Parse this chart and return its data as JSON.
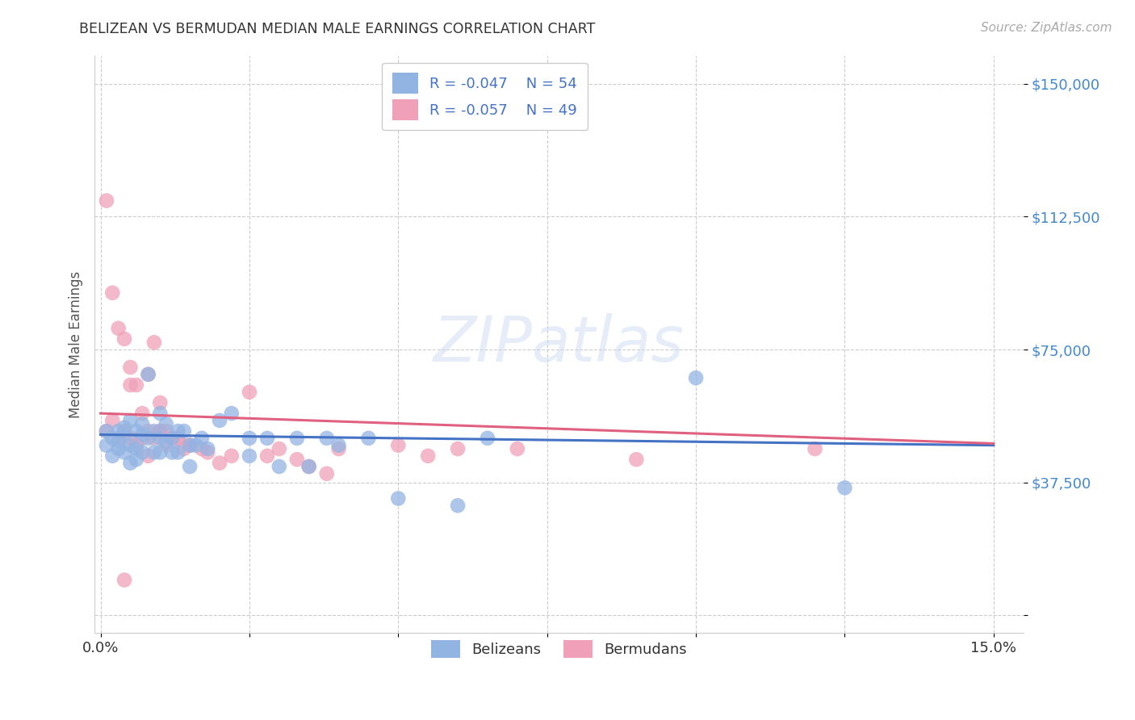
{
  "title": "BELIZEAN VS BERMUDAN MEDIAN MALE EARNINGS CORRELATION CHART",
  "source": "Source: ZipAtlas.com",
  "ylabel": "Median Male Earnings",
  "xlim": [
    -0.001,
    0.155
  ],
  "ylim": [
    -5000,
    158000
  ],
  "xticks": [
    0.0,
    0.025,
    0.05,
    0.075,
    0.1,
    0.125,
    0.15
  ],
  "xticklabels": [
    "0.0%",
    "",
    "",
    "",
    "",
    "",
    "15.0%"
  ],
  "yticks": [
    0,
    37500,
    75000,
    112500,
    150000
  ],
  "yticklabels": [
    "",
    "$37,500",
    "$75,000",
    "$112,500",
    "$150,000"
  ],
  "grid_color": "#cccccc",
  "background_color": "#ffffff",
  "watermark": "ZIPatlas",
  "belizean_color": "#92b4e3",
  "bermudan_color": "#f0a0b8",
  "belizean_line_color": "#4472c4",
  "bermudan_line_color": "#e06080",
  "legend_label1": "Belizeans",
  "legend_label2": "Bermudans",
  "legend_text1": "R = -0.047    N = 54",
  "legend_text2": "R = -0.057    N = 49",
  "belizean_x": [
    0.001,
    0.001,
    0.002,
    0.002,
    0.003,
    0.003,
    0.003,
    0.004,
    0.004,
    0.004,
    0.005,
    0.005,
    0.005,
    0.006,
    0.006,
    0.006,
    0.007,
    0.007,
    0.007,
    0.008,
    0.008,
    0.009,
    0.009,
    0.01,
    0.01,
    0.01,
    0.011,
    0.011,
    0.012,
    0.012,
    0.013,
    0.013,
    0.014,
    0.015,
    0.015,
    0.016,
    0.017,
    0.018,
    0.02,
    0.022,
    0.025,
    0.025,
    0.028,
    0.03,
    0.033,
    0.035,
    0.038,
    0.04,
    0.045,
    0.05,
    0.06,
    0.065,
    0.1,
    0.125
  ],
  "belizean_y": [
    52000,
    48000,
    50000,
    45000,
    52000,
    49000,
    47000,
    53000,
    51000,
    46000,
    55000,
    48000,
    43000,
    52000,
    47000,
    44000,
    54000,
    51000,
    46000,
    68000,
    50000,
    52000,
    46000,
    57000,
    50000,
    46000,
    54000,
    49000,
    50000,
    46000,
    52000,
    46000,
    52000,
    48000,
    42000,
    48000,
    50000,
    47000,
    55000,
    57000,
    50000,
    45000,
    50000,
    42000,
    50000,
    42000,
    50000,
    48000,
    50000,
    33000,
    31000,
    50000,
    67000,
    36000
  ],
  "bermudan_x": [
    0.001,
    0.001,
    0.002,
    0.002,
    0.003,
    0.003,
    0.004,
    0.004,
    0.005,
    0.005,
    0.005,
    0.006,
    0.006,
    0.007,
    0.007,
    0.008,
    0.008,
    0.009,
    0.009,
    0.01,
    0.01,
    0.011,
    0.011,
    0.012,
    0.013,
    0.014,
    0.015,
    0.017,
    0.018,
    0.02,
    0.022,
    0.025,
    0.028,
    0.03,
    0.033,
    0.035,
    0.038,
    0.04,
    0.05,
    0.055,
    0.06,
    0.07,
    0.09,
    0.01,
    0.013,
    0.015,
    0.12,
    0.004,
    0.008
  ],
  "bermudan_y": [
    117000,
    52000,
    91000,
    55000,
    81000,
    50000,
    78000,
    52000,
    70000,
    50000,
    65000,
    65000,
    48000,
    57000,
    50000,
    68000,
    52000,
    77000,
    50000,
    52000,
    60000,
    52000,
    48000,
    50000,
    50000,
    47000,
    48000,
    47000,
    46000,
    43000,
    45000,
    63000,
    45000,
    47000,
    44000,
    42000,
    40000,
    47000,
    48000,
    45000,
    47000,
    47000,
    44000,
    52000,
    50000,
    48000,
    47000,
    10000,
    45000
  ],
  "belizean_line_x": [
    0.0,
    0.15
  ],
  "belizean_line_y": [
    51000,
    48000
  ],
  "bermudan_line_x": [
    0.0,
    0.15
  ],
  "bermudan_line_y": [
    57000,
    48500
  ]
}
